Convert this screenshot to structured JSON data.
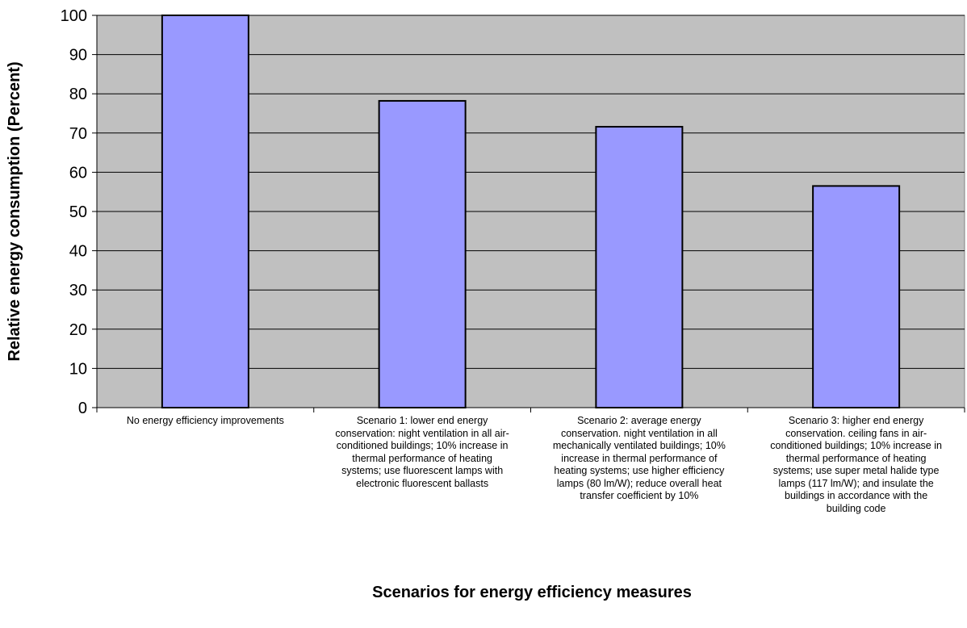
{
  "chart_data": {
    "type": "bar",
    "categories": [
      "No energy efficiency improvements",
      "Scenario 1: lower end energy conservation:  night ventilation in all air-conditioned buildings; 10% increase in thermal performance of heating systems; use fluorescent lamps with electronic fluorescent ballasts",
      "Scenario 2: average energy conservation.  night ventilation in all mechanically ventilated buildings; 10% increase in thermal performance of heating systems; use higher efficiency lamps (80 lm/W); reduce overall heat transfer coefficient by 10%",
      "Scenario 3: higher end energy conservation.  ceiling fans in air-conditioned buildings; 10% increase in thermal performance of heating systems; use super metal halide type lamps (117 lm/W); and insulate the buildings in accordance with the building code"
    ],
    "category_lines": [
      [
        "No energy efficiency improvements"
      ],
      [
        "Scenario 1: lower end energy",
        "conservation:  night ventilation in all air-",
        "conditioned buildings; 10% increase in",
        "thermal performance of heating",
        "systems; use fluorescent lamps with",
        "electronic fluorescent ballasts"
      ],
      [
        "Scenario 2: average energy",
        "conservation.  night ventilation in all",
        "mechanically ventilated buildings; 10%",
        "increase in thermal performance of",
        "heating systems; use higher efficiency",
        "lamps (80 lm/W); reduce overall heat",
        "transfer coefficient by 10%"
      ],
      [
        "Scenario 3: higher end energy",
        "conservation.  ceiling fans in air-",
        "conditioned buildings; 10% increase in",
        "thermal performance of heating",
        "systems; use super metal halide type",
        "lamps (117 lm/W); and insulate the",
        "buildings in accordance with the",
        "building code"
      ]
    ],
    "values": [
      100,
      78.2,
      71.6,
      56.5
    ],
    "xlabel": "Scenarios for energy efficiency measures",
    "ylabel": "Relative energy consumption (Percent)",
    "ylim": [
      0,
      100
    ],
    "yticks": [
      0,
      10,
      20,
      30,
      40,
      50,
      60,
      70,
      80,
      90,
      100
    ],
    "grid": true,
    "colors": {
      "bar": "#9999ff",
      "plot_bg": "#c0c0c0",
      "bar_edge": "#000000"
    }
  }
}
